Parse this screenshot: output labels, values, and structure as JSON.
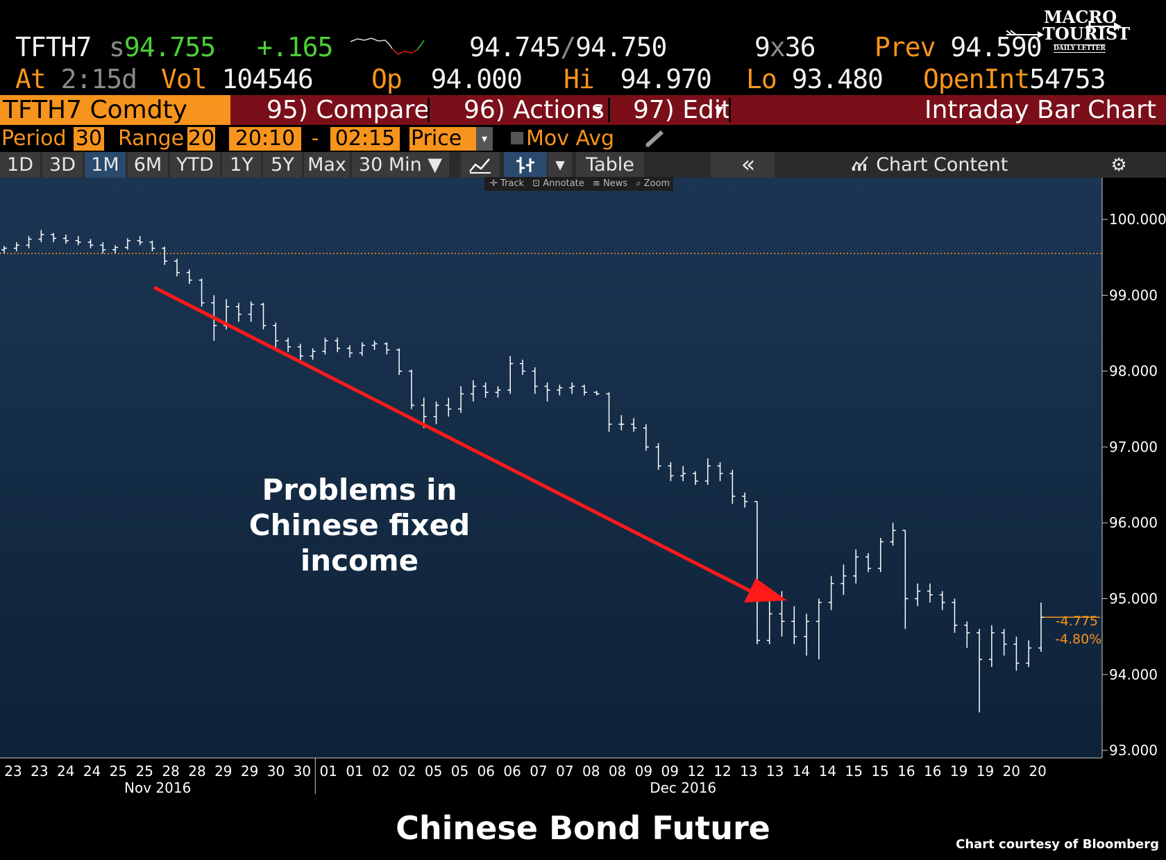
{
  "header": {
    "ticker": "TFTH7",
    "last_prefix": "s",
    "last": "94.755",
    "change": "+.165",
    "bid": "94.745",
    "ask": "94.750",
    "size_bid": "9",
    "size_sep": "x",
    "size_ask": "36",
    "prev_label": "Prev",
    "prev": "94.590",
    "at_label": "At",
    "at_time": "2:15d",
    "vol_label": "Vol",
    "vol": "104546",
    "op_label": "Op",
    "op": "94.000",
    "hi_label": "Hi",
    "hi": "94.970",
    "lo_label": "Lo",
    "lo": "93.480",
    "openint_label": "OpenInt",
    "openint": "54753"
  },
  "logo": {
    "line1": "MACRO",
    "line2": "TOURIST",
    "line3": "DAILY LETTER"
  },
  "function_bar": {
    "security": "TFTH7 Comdty",
    "compare": "95) Compare",
    "actions": "96) Actions",
    "edit": "97) Edit",
    "chart_name": "Intraday Bar Chart"
  },
  "options": {
    "period_label": "Period",
    "period": "30",
    "range_label": "Range",
    "range": "20",
    "start": "20:10",
    "dash": "-",
    "end": "02:15",
    "field": "Price",
    "mov_avg": "Mov Avg"
  },
  "tabs": [
    "1D",
    "3D",
    "1M",
    "6M",
    "YTD",
    "1Y",
    "5Y",
    "Max",
    "30 Min ▼"
  ],
  "active_tab": "1M",
  "toolbar": {
    "table": "Table",
    "back": "«",
    "chart_content": "Chart Content"
  },
  "mini_toolbar": [
    "Track",
    "Annotate",
    "News",
    "Zoom"
  ],
  "colors": {
    "orange": "#f7941d",
    "green": "#4cd137",
    "panel": "#7a0f1a",
    "arrow": "#ff1a1a",
    "bars": "#ffffff",
    "plot_bg": "#13294a"
  },
  "annotation": {
    "line1": "Problems in",
    "line2": "Chinese fixed",
    "line3": "income"
  },
  "last_change": {
    "abs": "-4.775",
    "pct": "-4.80%"
  },
  "footer": {
    "title": "Chinese Bond Future",
    "credit": "Chart courtesy of Bloomberg"
  },
  "chart_data": {
    "type": "bar",
    "subtype": "ohlc",
    "title": "Chinese Bond Future",
    "ylim": [
      93.0,
      100.5
    ],
    "yticks": [
      "100.000",
      "99.000",
      "98.000",
      "97.000",
      "96.000",
      "95.000",
      "94.000",
      "93.000"
    ],
    "ytick_values": [
      100,
      99,
      98,
      97,
      96,
      95,
      94,
      93
    ],
    "x_tick_labels": [
      "23",
      "23",
      "24",
      "24",
      "25",
      "25",
      "28",
      "28",
      "29",
      "29",
      "30",
      "30",
      "01",
      "01",
      "02",
      "02",
      "05",
      "05",
      "06",
      "06",
      "07",
      "07",
      "08",
      "08",
      "09",
      "09",
      "12",
      "12",
      "13",
      "13",
      "14",
      "14",
      "15",
      "15",
      "16",
      "16",
      "19",
      "19",
      "20",
      "20"
    ],
    "month_labels": [
      "Nov 2016",
      "Dec 2016"
    ],
    "prev_close_line": 99.55,
    "series": [
      {
        "values": [
          [
            99.6,
            99.65,
            99.55,
            99.62
          ],
          [
            99.62,
            99.7,
            99.58,
            99.66
          ],
          [
            99.66,
            99.78,
            99.62,
            99.74
          ],
          [
            99.74,
            99.86,
            99.7,
            99.8
          ],
          [
            99.8,
            99.82,
            99.7,
            99.75
          ],
          [
            99.75,
            99.8,
            99.68,
            99.72
          ],
          [
            99.72,
            99.78,
            99.66,
            99.7
          ],
          [
            99.7,
            99.74,
            99.62,
            99.66
          ],
          [
            99.66,
            99.7,
            99.55,
            99.6
          ],
          [
            99.6,
            99.66,
            99.55,
            99.63
          ],
          [
            99.63,
            99.75,
            99.6,
            99.72
          ],
          [
            99.72,
            99.78,
            99.66,
            99.7
          ],
          [
            99.7,
            99.72,
            99.58,
            99.62
          ],
          [
            99.62,
            99.64,
            99.4,
            99.45
          ],
          [
            99.45,
            99.48,
            99.25,
            99.3
          ],
          [
            99.3,
            99.34,
            99.15,
            99.2
          ],
          [
            99.2,
            99.22,
            98.85,
            98.9
          ],
          [
            98.9,
            99.0,
            98.4,
            98.6
          ],
          [
            98.6,
            98.95,
            98.55,
            98.85
          ],
          [
            98.85,
            98.9,
            98.65,
            98.75
          ],
          [
            98.75,
            98.92,
            98.65,
            98.88
          ],
          [
            98.88,
            98.9,
            98.55,
            98.6
          ],
          [
            98.6,
            98.64,
            98.3,
            98.4
          ],
          [
            98.4,
            98.44,
            98.25,
            98.32
          ],
          [
            98.32,
            98.36,
            98.1,
            98.2
          ],
          [
            98.2,
            98.3,
            98.15,
            98.26
          ],
          [
            98.26,
            98.44,
            98.22,
            98.4
          ],
          [
            98.4,
            98.44,
            98.25,
            98.3
          ],
          [
            98.3,
            98.34,
            98.18,
            98.24
          ],
          [
            98.24,
            98.38,
            98.2,
            98.34
          ],
          [
            98.34,
            98.4,
            98.28,
            98.36
          ],
          [
            98.36,
            98.38,
            98.22,
            98.28
          ],
          [
            98.28,
            98.3,
            97.95,
            98.0
          ],
          [
            98.0,
            98.02,
            97.5,
            97.55
          ],
          [
            97.55,
            97.65,
            97.25,
            97.4
          ],
          [
            97.4,
            97.6,
            97.3,
            97.55
          ],
          [
            97.55,
            97.65,
            97.4,
            97.5
          ],
          [
            97.5,
            97.8,
            97.45,
            97.7
          ],
          [
            97.7,
            97.88,
            97.6,
            97.8
          ],
          [
            97.8,
            97.85,
            97.65,
            97.72
          ],
          [
            97.72,
            97.8,
            97.65,
            97.75
          ],
          [
            97.75,
            98.2,
            97.7,
            98.1
          ],
          [
            98.1,
            98.15,
            97.95,
            98.0
          ],
          [
            98.0,
            98.05,
            97.7,
            97.8
          ],
          [
            97.8,
            97.85,
            97.6,
            97.75
          ],
          [
            97.75,
            97.82,
            97.68,
            97.78
          ],
          [
            97.78,
            97.85,
            97.7,
            97.8
          ],
          [
            97.8,
            97.82,
            97.68,
            97.72
          ],
          [
            97.72,
            97.74,
            97.68,
            97.7
          ],
          [
            97.7,
            97.72,
            97.2,
            97.3
          ],
          [
            97.3,
            97.42,
            97.22,
            97.3
          ],
          [
            97.3,
            97.38,
            97.2,
            97.25
          ],
          [
            97.25,
            97.3,
            96.95,
            97.0
          ],
          [
            97.0,
            97.05,
            96.7,
            96.75
          ],
          [
            96.75,
            96.8,
            96.55,
            96.62
          ],
          [
            96.62,
            96.75,
            96.55,
            96.65
          ],
          [
            96.65,
            96.68,
            96.5,
            96.55
          ],
          [
            96.55,
            96.85,
            96.5,
            96.75
          ],
          [
            96.75,
            96.8,
            96.55,
            96.65
          ],
          [
            96.65,
            96.7,
            96.25,
            96.35
          ],
          [
            96.35,
            96.4,
            96.2,
            96.28
          ],
          [
            96.28,
            96.0,
            94.4,
            94.45
          ],
          [
            94.45,
            95.0,
            94.4,
            94.8
          ],
          [
            94.8,
            95.1,
            94.5,
            94.7
          ],
          [
            94.7,
            94.9,
            94.4,
            94.5
          ],
          [
            94.5,
            94.8,
            94.25,
            94.7
          ],
          [
            94.7,
            95.0,
            94.2,
            94.95
          ],
          [
            94.95,
            95.3,
            94.85,
            95.2
          ],
          [
            95.2,
            95.45,
            95.05,
            95.3
          ],
          [
            95.3,
            95.65,
            95.2,
            95.55
          ],
          [
            95.55,
            95.6,
            95.35,
            95.4
          ],
          [
            95.4,
            95.8,
            95.35,
            95.75
          ],
          [
            95.75,
            96.0,
            95.7,
            95.9
          ],
          [
            95.9,
            95.4,
            94.6,
            95.0
          ],
          [
            95.0,
            95.2,
            94.9,
            95.1
          ],
          [
            95.1,
            95.2,
            94.95,
            95.05
          ],
          [
            95.05,
            95.1,
            94.85,
            94.95
          ],
          [
            94.95,
            95.0,
            94.55,
            94.65
          ],
          [
            94.65,
            94.7,
            94.35,
            94.55
          ],
          [
            94.55,
            94.6,
            93.5,
            94.2
          ],
          [
            94.2,
            94.65,
            94.1,
            94.55
          ],
          [
            94.55,
            94.6,
            94.25,
            94.4
          ],
          [
            94.4,
            94.5,
            94.05,
            94.15
          ],
          [
            94.15,
            94.45,
            94.1,
            94.35
          ],
          [
            94.35,
            94.95,
            94.3,
            94.755
          ]
        ]
      }
    ]
  }
}
